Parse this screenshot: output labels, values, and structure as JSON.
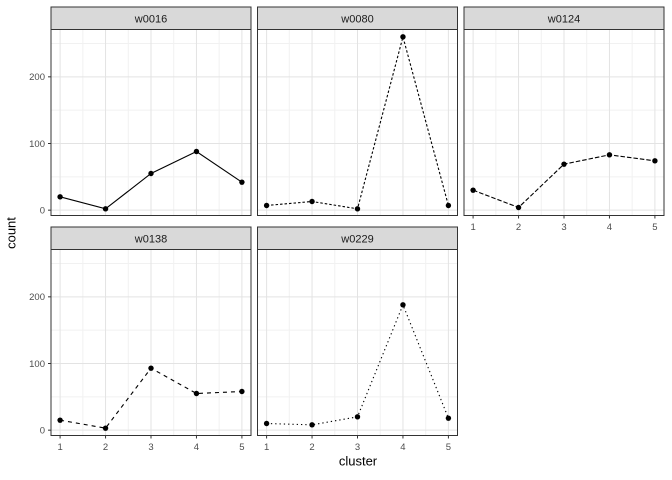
{
  "chart_data": {
    "type": "line",
    "title": "",
    "xlabel": "cluster",
    "ylabel": "count",
    "facets": [
      {
        "label": "w0016",
        "linetype": "solid",
        "values": [
          20,
          2,
          55,
          88,
          42
        ]
      },
      {
        "label": "w0080",
        "linetype": "dashed-short",
        "values": [
          7,
          13,
          2,
          260,
          7
        ]
      },
      {
        "label": "w0124",
        "linetype": "dashed-long",
        "values": [
          30,
          4,
          69,
          83,
          74
        ]
      },
      {
        "label": "w0138",
        "linetype": "dashed-medium",
        "values": [
          15,
          3,
          93,
          55,
          58
        ]
      },
      {
        "label": "w0229",
        "linetype": "dotted",
        "values": [
          10,
          8,
          20,
          188,
          18
        ]
      }
    ],
    "x": [
      1,
      2,
      3,
      4,
      5
    ],
    "x_ticks": [
      "1",
      "2",
      "3",
      "4",
      "5"
    ],
    "x_minor": [
      1.5,
      2.5,
      3.5,
      4.5
    ],
    "y_ticks": [
      "0",
      "100",
      "200"
    ],
    "y_tick_values": [
      0,
      100,
      200
    ],
    "y_minor": [
      50,
      150,
      250
    ],
    "xlim": [
      0.8,
      5.2
    ],
    "ylim": [
      -8,
      271
    ],
    "grid": "major+minor",
    "legend": "none",
    "point_marker": "filled-circle",
    "colors": {
      "line": "#000000",
      "point": "#000000",
      "strip_fill": "#D9D9D9",
      "strip_border": "#333333",
      "panel_fill": "#FFFFFF",
      "panel_border": "#333333",
      "grid_major": "#E3E3E3",
      "grid_minor": "#F1F1F1",
      "axis_text": "#4D4D4D",
      "tick": "#333333",
      "background": "#FFFFFF"
    }
  }
}
